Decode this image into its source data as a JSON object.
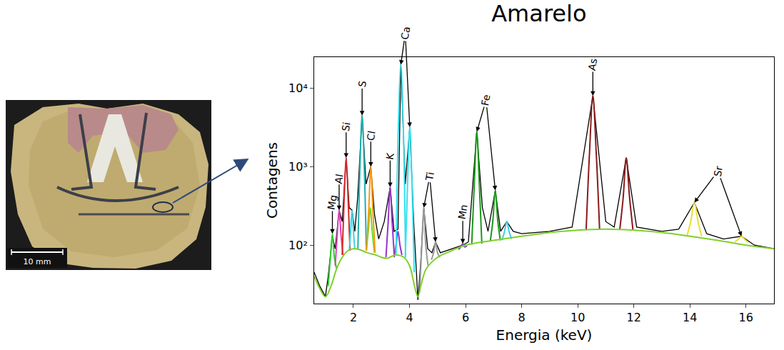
{
  "chart_data": {
    "type": "line",
    "title": "Amarelo",
    "x_label": "Energia (keV)",
    "y_label": "Contagens",
    "log": "y",
    "grid": false,
    "xlim": [
      0.6,
      17
    ],
    "ylim": [
      18,
      25000
    ],
    "xticks": [
      2,
      4,
      6,
      8,
      10,
      12,
      14,
      16
    ],
    "yticks": [
      {
        "value": 100,
        "label": "10²"
      },
      {
        "value": 1000,
        "label": "10³"
      },
      {
        "value": 10000,
        "label": "10⁴"
      }
    ],
    "series": [
      {
        "color": "#000000",
        "x": [
          0.6,
          0.8,
          1.0,
          1.1,
          1.25,
          1.35,
          1.49,
          1.6,
          1.74,
          1.85,
          1.95,
          2.05,
          2.15,
          2.31,
          2.45,
          2.62,
          2.75,
          2.9,
          3.1,
          3.31,
          3.45,
          3.59,
          3.69,
          3.85,
          4.01,
          4.15,
          4.3,
          4.4,
          4.51,
          4.65,
          4.8,
          4.93,
          5.1,
          5.5,
          5.9,
          6.1,
          6.4,
          6.6,
          6.8,
          7.06,
          7.25,
          7.47,
          7.7,
          8.0,
          9.0,
          9.8,
          10.54,
          11.0,
          11.3,
          11.73,
          12.1,
          13.0,
          13.6,
          14.16,
          14.6,
          15.2,
          15.84,
          16.3,
          17.0
        ],
        "values": [
          45,
          30,
          22,
          40,
          130,
          90,
          280,
          200,
          1300,
          300,
          280,
          150,
          400,
          4500,
          600,
          1000,
          250,
          120,
          200,
          550,
          150,
          160,
          20000,
          600,
          3200,
          200,
          20,
          60,
          300,
          90,
          80,
          110,
          80,
          90,
          100,
          110,
          2800,
          300,
          150,
          500,
          150,
          200,
          150,
          140,
          150,
          170,
          8000,
          200,
          170,
          1300,
          170,
          150,
          160,
          350,
          140,
          120,
          130,
          100,
          90
        ]
      },
      {
        "color": "#33cc33",
        "x": [
          1.1,
          1.18,
          1.25,
          1.32,
          1.4
        ],
        "values": [
          30,
          70,
          140,
          70,
          50
        ]
      },
      {
        "color": "#e040c0",
        "x": [
          1.35,
          1.42,
          1.49,
          1.56,
          1.63
        ],
        "values": [
          55,
          130,
          280,
          130,
          75
        ]
      },
      {
        "color": "#d62728",
        "x": [
          1.6,
          1.67,
          1.74,
          1.81,
          1.88
        ],
        "values": [
          75,
          400,
          1300,
          400,
          85
        ]
      },
      {
        "color": "#40d0e0",
        "x": [
          1.85,
          1.9,
          1.95,
          2.0,
          2.05
        ],
        "values": [
          85,
          150,
          280,
          150,
          90
        ]
      },
      {
        "color": "#20b0b0",
        "x": [
          2.16,
          2.23,
          2.31,
          2.39,
          2.46
        ],
        "values": [
          90,
          900,
          4500,
          900,
          88
        ]
      },
      {
        "color": "#66dd22",
        "x": [
          2.45,
          2.53,
          2.6,
          2.67,
          2.75
        ],
        "values": [
          85,
          150,
          300,
          150,
          80
        ]
      },
      {
        "color": "#ff9900",
        "x": [
          2.47,
          2.55,
          2.62,
          2.69,
          2.77
        ],
        "values": [
          85,
          300,
          1000,
          300,
          80
        ]
      },
      {
        "color": "#9933cc",
        "x": [
          3.16,
          3.24,
          3.31,
          3.38,
          3.46
        ],
        "values": [
          70,
          200,
          550,
          200,
          70
        ]
      },
      {
        "color": "#9933cc",
        "x": [
          3.45,
          3.52,
          3.59,
          3.66,
          3.73
        ],
        "values": [
          72,
          100,
          150,
          100,
          75
        ]
      },
      {
        "color": "#33e0f0",
        "x": [
          3.52,
          3.6,
          3.69,
          3.78,
          3.86
        ],
        "values": [
          75,
          3000,
          20000,
          3000,
          70
        ]
      },
      {
        "color": "#33e0f0",
        "x": [
          3.85,
          3.93,
          4.01,
          4.09,
          4.17
        ],
        "values": [
          70,
          600,
          3200,
          600,
          45
        ]
      },
      {
        "color": "#999999",
        "x": [
          4.36,
          4.44,
          4.51,
          4.58,
          4.66
        ],
        "values": [
          25,
          100,
          300,
          100,
          55
        ]
      },
      {
        "color": "#999999",
        "x": [
          4.78,
          4.86,
          4.93,
          5.0,
          5.08
        ],
        "values": [
          65,
          80,
          110,
          80,
          70
        ]
      },
      {
        "color": "#8844cc",
        "x": [
          5.75,
          5.83,
          5.9,
          5.97,
          6.05
        ],
        "values": [
          88,
          95,
          105,
          95,
          98
        ]
      },
      {
        "color": "#1a9a1a",
        "x": [
          6.22,
          6.31,
          6.4,
          6.49,
          6.58
        ],
        "values": [
          102,
          600,
          2800,
          600,
          105
        ]
      },
      {
        "color": "#1a9a1a",
        "x": [
          6.88,
          6.97,
          7.06,
          7.15,
          7.24
        ],
        "values": [
          112,
          200,
          500,
          200,
          115
        ]
      },
      {
        "color": "#40d0e0",
        "x": [
          7.3,
          7.39,
          7.47,
          7.55,
          7.64
        ],
        "values": [
          116,
          150,
          200,
          150,
          120
        ]
      },
      {
        "color": "#8b1a1a",
        "x": [
          10.3,
          10.42,
          10.54,
          10.66,
          10.78
        ],
        "values": [
          155,
          1500,
          8000,
          1500,
          157
        ]
      },
      {
        "color": "#8b1a1a",
        "x": [
          11.5,
          11.62,
          11.73,
          11.85,
          11.97
        ],
        "values": [
          158,
          400,
          1300,
          400,
          156
        ]
      },
      {
        "color": "#e8e030",
        "x": [
          13.9,
          14.03,
          14.16,
          14.29,
          14.42
        ],
        "values": [
          133,
          200,
          350,
          200,
          130
        ]
      },
      {
        "color": "#e8e030",
        "x": [
          15.6,
          15.72,
          15.84,
          15.96,
          16.08
        ],
        "values": [
          110,
          118,
          130,
          118,
          108
        ]
      },
      {
        "color": "#7fd12a",
        "x": [
          0.6,
          0.8,
          1.0,
          1.2,
          1.4,
          1.6,
          1.8,
          2.0,
          2.2,
          2.5,
          2.8,
          3.0,
          3.2,
          3.5,
          3.8,
          4.0,
          4.2,
          4.3,
          4.4,
          4.6,
          5.0,
          5.5,
          6.0,
          7.0,
          8.0,
          9.0,
          10.0,
          11.0,
          12.0,
          13.0,
          14.0,
          15.0,
          16.0,
          17.0
        ],
        "values": [
          40,
          28,
          22,
          30,
          50,
          70,
          85,
          90,
          88,
          80,
          75,
          70,
          68,
          75,
          70,
          55,
          28,
          22,
          30,
          50,
          70,
          85,
          100,
          115,
          130,
          145,
          155,
          160,
          155,
          145,
          130,
          115,
          100,
          90
        ]
      }
    ],
    "annotations": [
      {
        "text": "Mg",
        "targets": [
          [
            1.25,
            140
          ]
        ]
      },
      {
        "text": "Al",
        "targets": [
          [
            1.49,
            280
          ]
        ]
      },
      {
        "text": "Si",
        "targets": [
          [
            1.74,
            1300
          ]
        ]
      },
      {
        "text": "S",
        "targets": [
          [
            2.31,
            4500
          ]
        ]
      },
      {
        "text": "Cl",
        "targets": [
          [
            2.62,
            1000
          ]
        ]
      },
      {
        "text": "K",
        "targets": [
          [
            3.31,
            550
          ]
        ]
      },
      {
        "text": "Ca",
        "targets": [
          [
            3.69,
            20000
          ],
          [
            4.01,
            3200
          ]
        ]
      },
      {
        "text": "Ti",
        "targets": [
          [
            4.51,
            300
          ],
          [
            4.93,
            110
          ]
        ]
      },
      {
        "text": "Mn",
        "targets": [
          [
            5.9,
            105
          ]
        ]
      },
      {
        "text": "Fe",
        "targets": [
          [
            6.4,
            2800
          ],
          [
            7.06,
            500
          ]
        ]
      },
      {
        "text": "As",
        "targets": [
          [
            10.54,
            8000
          ]
        ]
      },
      {
        "text": "Sr",
        "targets": [
          [
            14.16,
            350
          ],
          [
            15.84,
            130
          ]
        ]
      }
    ]
  },
  "photo": {
    "scale_bar": "10 mm"
  }
}
